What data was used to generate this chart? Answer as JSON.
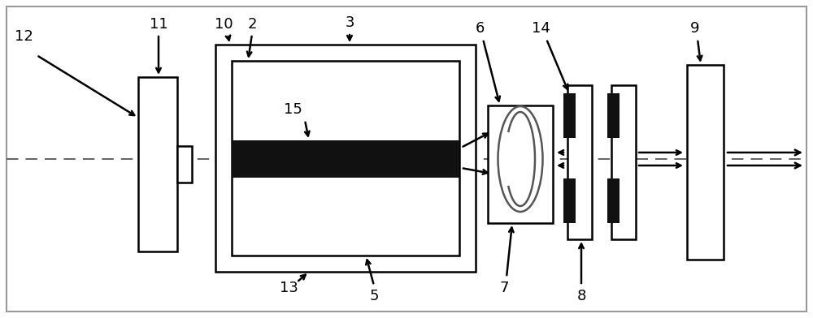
{
  "fig_width": 10.0,
  "fig_height": 3.92,
  "dpi": 100,
  "bg_color": "#ffffff",
  "border_color": "#000000",
  "gray_border": "#888888"
}
